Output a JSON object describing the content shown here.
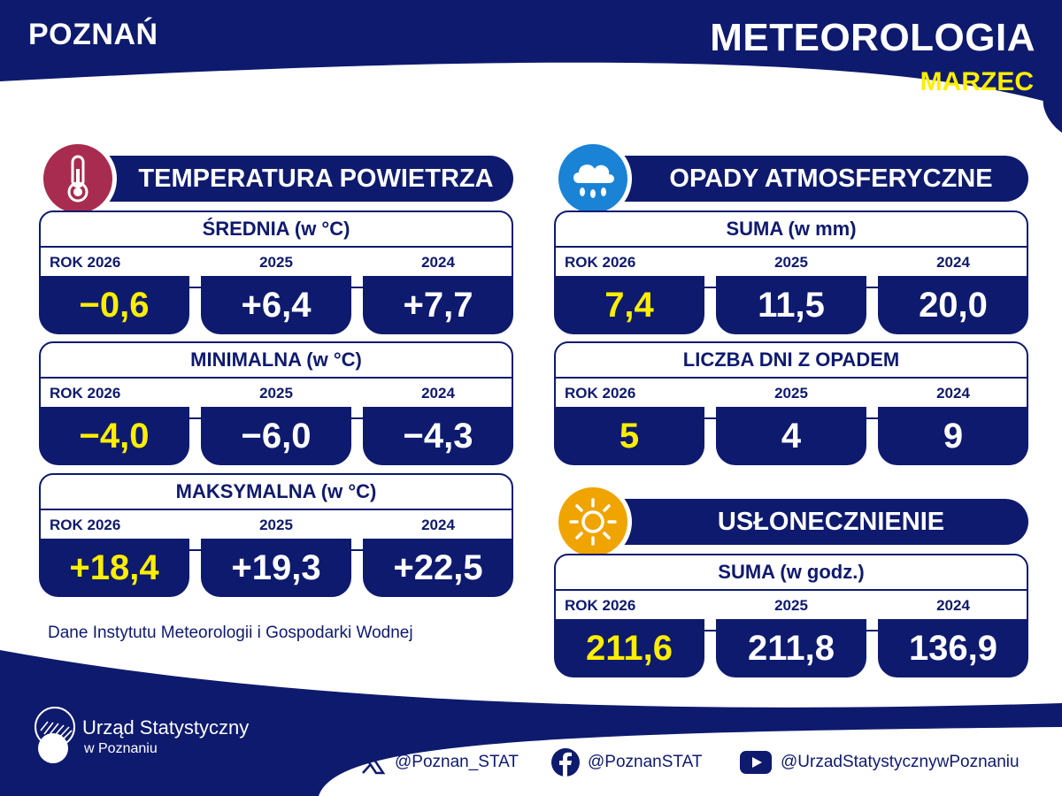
{
  "header": {
    "city": "POZNAŃ",
    "title": "METEOROLOGIA",
    "month": "MARZEC"
  },
  "temperature": {
    "title": "TEMPERATURA POWIETRZA",
    "icon": "thermometer-icon",
    "blocks": [
      {
        "title": "ŚREDNIA (w °C)",
        "years": [
          "ROK 2026",
          "2025",
          "2024"
        ],
        "values": [
          "−0,6",
          "+6,4",
          "+7,7"
        ]
      },
      {
        "title": "MINIMALNA (w °C)",
        "years": [
          "ROK 2026",
          "2025",
          "2024"
        ],
        "values": [
          "−4,0",
          "−6,0",
          "−4,3"
        ]
      },
      {
        "title": "MAKSYMALNA (w °C)",
        "years": [
          "ROK 2026",
          "2025",
          "2024"
        ],
        "values": [
          "+18,4",
          "+19,3",
          "+22,5"
        ]
      }
    ]
  },
  "precipitation": {
    "title": "OPADY ATMOSFERYCZNE",
    "icon": "rain-cloud-icon",
    "blocks": [
      {
        "title": "SUMA (w mm)",
        "years": [
          "ROK 2026",
          "2025",
          "2024"
        ],
        "values": [
          "7,4",
          "11,5",
          "20,0"
        ]
      },
      {
        "title": "LICZBA DNI Z OPADEM",
        "years": [
          "ROK 2026",
          "2025",
          "2024"
        ],
        "values": [
          "5",
          "4",
          "9"
        ]
      }
    ]
  },
  "sunshine": {
    "title": "USŁONECZNIENIE",
    "icon": "sun-icon",
    "blocks": [
      {
        "title": "SUMA (w godz.)",
        "years": [
          "ROK 2026",
          "2025",
          "2024"
        ],
        "values": [
          "211,6",
          "211,8",
          "136,9"
        ]
      }
    ]
  },
  "source": "Dane Instytutu Meteorologii i Gospodarki Wodnej",
  "footer": {
    "org_name": "Urząd Statystyczny",
    "org_sub": "w Poznaniu",
    "social": [
      {
        "icon": "x-icon",
        "handle": "@Poznan_STAT"
      },
      {
        "icon": "facebook-icon",
        "handle": "@PoznanSTAT"
      },
      {
        "icon": "youtube-icon",
        "handle": "@UrzadStatystycznywPoznaniu"
      }
    ]
  },
  "colors": {
    "navy": "#0e1a6e",
    "highlight": "#ffee00",
    "temp": "#a82c4f",
    "rain": "#1b83d6",
    "sun": "#f0a400"
  }
}
